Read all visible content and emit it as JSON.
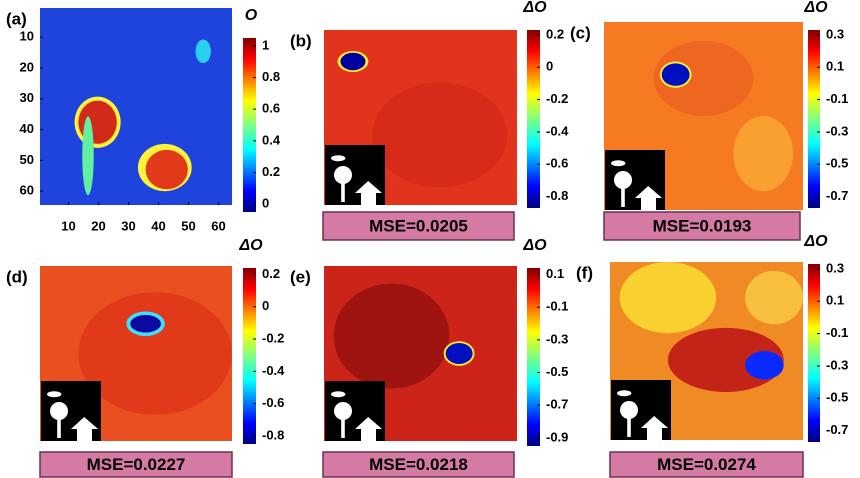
{
  "panels": [
    {
      "label": "(a)",
      "colorbar_title": "O",
      "clim": [
        -0.05,
        1.05
      ],
      "cticks": [
        1,
        0.8,
        0.6,
        0.4,
        0.2,
        0
      ],
      "xlim": [
        0.5,
        64.5
      ],
      "ylim": [
        0.5,
        64.5
      ],
      "xticks": [
        10,
        20,
        30,
        40,
        50,
        60
      ],
      "yticks": [
        10,
        20,
        30,
        40,
        50,
        60
      ]
    },
    {
      "label": "(b)",
      "colorbar_title": "ΔO",
      "clim": [
        -0.87,
        0.23
      ],
      "cticks": [
        0.2,
        0,
        -0.2,
        -0.4,
        -0.6,
        -0.8
      ],
      "mse": "MSE=0.0205"
    },
    {
      "label": "(c)",
      "colorbar_title": "ΔO",
      "clim": [
        -0.77,
        0.33
      ],
      "cticks": [
        0.3,
        0.1,
        -0.1,
        -0.3,
        -0.5,
        -0.7
      ],
      "mse": "MSE=0.0193"
    },
    {
      "label": "(d)",
      "colorbar_title": "ΔO",
      "clim": [
        -0.85,
        0.24
      ],
      "cticks": [
        0.2,
        0,
        -0.2,
        -0.4,
        -0.6,
        -0.8
      ],
      "mse": "MSE=0.0227"
    },
    {
      "label": "(e)",
      "colorbar_title": "ΔO",
      "clim": [
        -0.95,
        0.14
      ],
      "cticks": [
        0.1,
        -0.1,
        -0.3,
        -0.5,
        -0.7,
        -0.9
      ],
      "mse": "MSE=0.0218"
    },
    {
      "label": "(f)",
      "colorbar_title": "ΔO",
      "clim": [
        -0.77,
        0.33
      ],
      "cticks": [
        0.3,
        0.1,
        -0.1,
        -0.3,
        -0.5,
        -0.7
      ],
      "mse": "MSE=0.0274"
    }
  ]
}
